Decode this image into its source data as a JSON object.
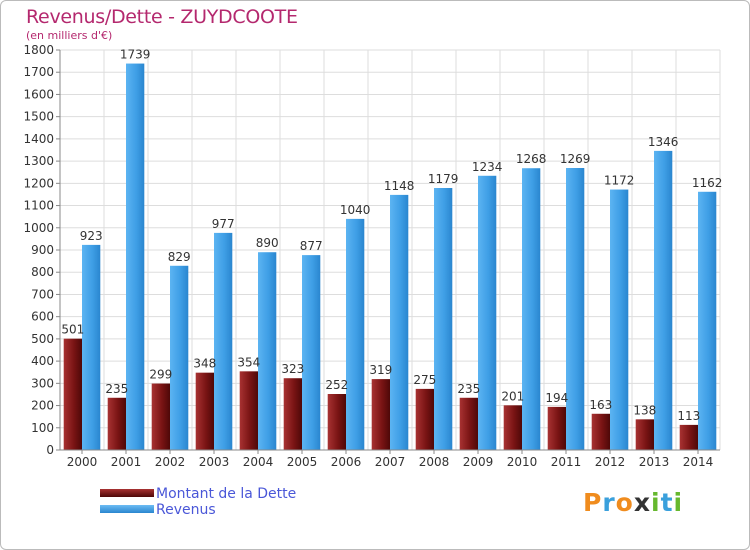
{
  "chart_data": {
    "type": "bar",
    "title": "Revenus/Dette - ZUYDCOOTE",
    "subtitle": "(en milliers d'€)",
    "categories": [
      "2000",
      "2001",
      "2002",
      "2003",
      "2004",
      "2005",
      "2006",
      "2007",
      "2008",
      "2009",
      "2010",
      "2011",
      "2012",
      "2013",
      "2014"
    ],
    "series": [
      {
        "name": "Montant de la Dette",
        "color": "#8b1a1a",
        "values": [
          501,
          235,
          299,
          348,
          354,
          323,
          252,
          319,
          275,
          235,
          201,
          194,
          163,
          138,
          113
        ]
      },
      {
        "name": "Revenus",
        "color": "#3f9fe6",
        "values": [
          923,
          1739,
          829,
          977,
          890,
          877,
          1040,
          1148,
          1179,
          1234,
          1268,
          1269,
          1172,
          1346,
          1162
        ]
      }
    ],
    "yticks": [
      0,
      100,
      200,
      300,
      400,
      500,
      600,
      700,
      800,
      900,
      1000,
      1100,
      1200,
      1300,
      1400,
      1500,
      1600,
      1700,
      1800
    ],
    "ylim": [
      0,
      1800
    ],
    "grid": true,
    "legend_position": "bottom-left"
  },
  "logo": {
    "letters": [
      "P",
      "r",
      "o",
      "x",
      "i",
      "t",
      "i"
    ],
    "colors": [
      "#f08c1e",
      "#3aa0dc",
      "#f08c1e",
      "#333333",
      "#66b82e",
      "#3aa0dc",
      "#66b82e"
    ]
  }
}
